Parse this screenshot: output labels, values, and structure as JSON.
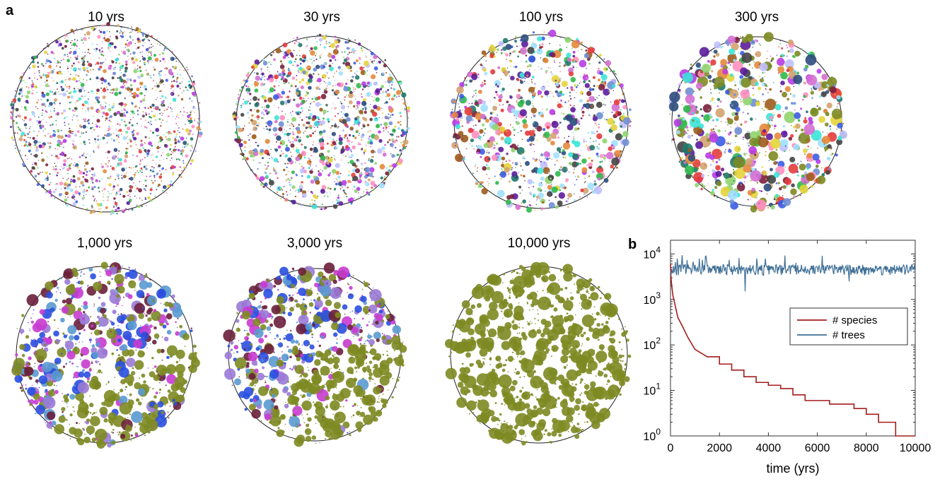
{
  "panel_a": {
    "label": "a",
    "snapshots": [
      {
        "title": "10 yrs",
        "dominant": null,
        "dot_density": 1.0,
        "max_dot": 2.2
      },
      {
        "title": "30 yrs",
        "dominant": null,
        "dot_density": 0.8,
        "max_dot": 3.2
      },
      {
        "title": "100 yrs",
        "dominant": null,
        "dot_density": 0.6,
        "max_dot": 5.0
      },
      {
        "title": "300 yrs",
        "dominant": "#7d8a22",
        "dot_density": 0.5,
        "max_dot": 7.5
      },
      {
        "title": "1,000 yrs",
        "dominant": "#7d8a22",
        "dot_density": 0.5,
        "max_dot": 8.0
      },
      {
        "title": "3,000 yrs",
        "dominant": "#7d8a22",
        "dot_density": 0.5,
        "max_dot": 8.0
      },
      {
        "title": "10,000 yrs",
        "dominant": "#7d8a22",
        "dot_density": 0.5,
        "max_dot": 9.0
      }
    ]
  },
  "panel_b": {
    "label": "b",
    "ytick_labels": [
      {
        "base": "10",
        "exp": "0"
      },
      {
        "base": "10",
        "exp": "1"
      },
      {
        "base": "10",
        "exp": "2"
      },
      {
        "base": "10",
        "exp": "3"
      },
      {
        "base": "10",
        "exp": "4"
      }
    ]
  },
  "chart_data": {
    "type": "line",
    "title": "",
    "xlabel": "time (yrs)",
    "ylabel": "",
    "xlim": [
      0,
      10000
    ],
    "ylim": [
      1,
      20000
    ],
    "yscale": "log",
    "xticks": [
      "0",
      "2000",
      "4000",
      "6000",
      "8000",
      "10000"
    ],
    "legend_position": "right",
    "series": [
      {
        "name": "# species",
        "color": "#a31d1d",
        "x": [
          0,
          20,
          50,
          100,
          200,
          300,
          500,
          700,
          1000,
          1500,
          2000,
          2500,
          3000,
          3500,
          4000,
          4500,
          5000,
          5500,
          6000,
          6500,
          7000,
          7500,
          8000,
          8500,
          9000,
          9200,
          9400,
          10000
        ],
        "y": [
          6000,
          3000,
          2000,
          1200,
          700,
          400,
          250,
          150,
          80,
          55,
          38,
          28,
          20,
          15,
          13,
          11,
          8,
          6,
          6,
          5,
          5,
          4,
          3,
          2,
          2,
          1,
          1,
          1
        ]
      },
      {
        "name": "# trees",
        "color": "#3f6f96",
        "x": [
          0,
          10000
        ],
        "y": [
          4500,
          4500
        ],
        "fluctuation": "noisy around mean, occasional spikes to ~9000 and dips to ~1500"
      }
    ]
  }
}
